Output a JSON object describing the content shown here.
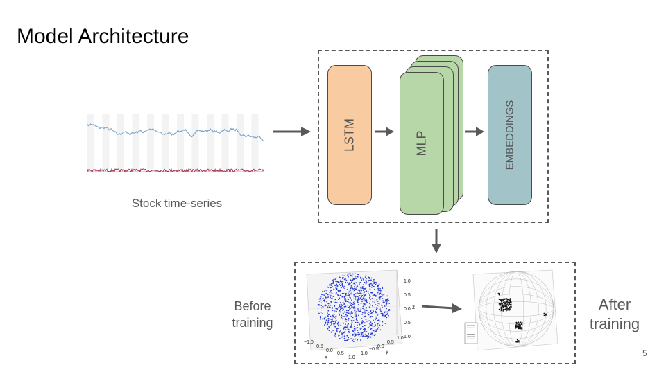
{
  "slide": {
    "title": "Model Architecture",
    "stock_caption": "Stock time-series",
    "page_number": "5"
  },
  "architecture": {
    "blocks": [
      {
        "label": "LSTM",
        "color": "#f8cba0"
      },
      {
        "label": "MLP",
        "color": "#b7d7a8"
      },
      {
        "label": "EMBEDDINGS",
        "color": "#a2c4c9"
      }
    ]
  },
  "results": {
    "before_label": "Before training",
    "after_label": "After training",
    "sphere_axis_ticks": [
      "1.0",
      "0.5",
      "0.0",
      "0.5",
      "1.0"
    ],
    "sphere_axis_z": "z",
    "sphere_axis_x": "x",
    "sphere_axis_y": "y",
    "sphere_x_ticks": [
      "−1.0",
      "−0.5",
      "0.0",
      "0.5",
      "1.0"
    ],
    "sphere_y_ticks": [
      "−1.0",
      "−0.5",
      "0.0",
      "0.5",
      "1.0"
    ]
  },
  "colors": {
    "arrow": "#595959",
    "dash": "#595959",
    "stock_line": "#7ea6c9",
    "stock_volume": "#a0304a",
    "points_before": "#2a3fd6",
    "points_after": "#111111"
  }
}
